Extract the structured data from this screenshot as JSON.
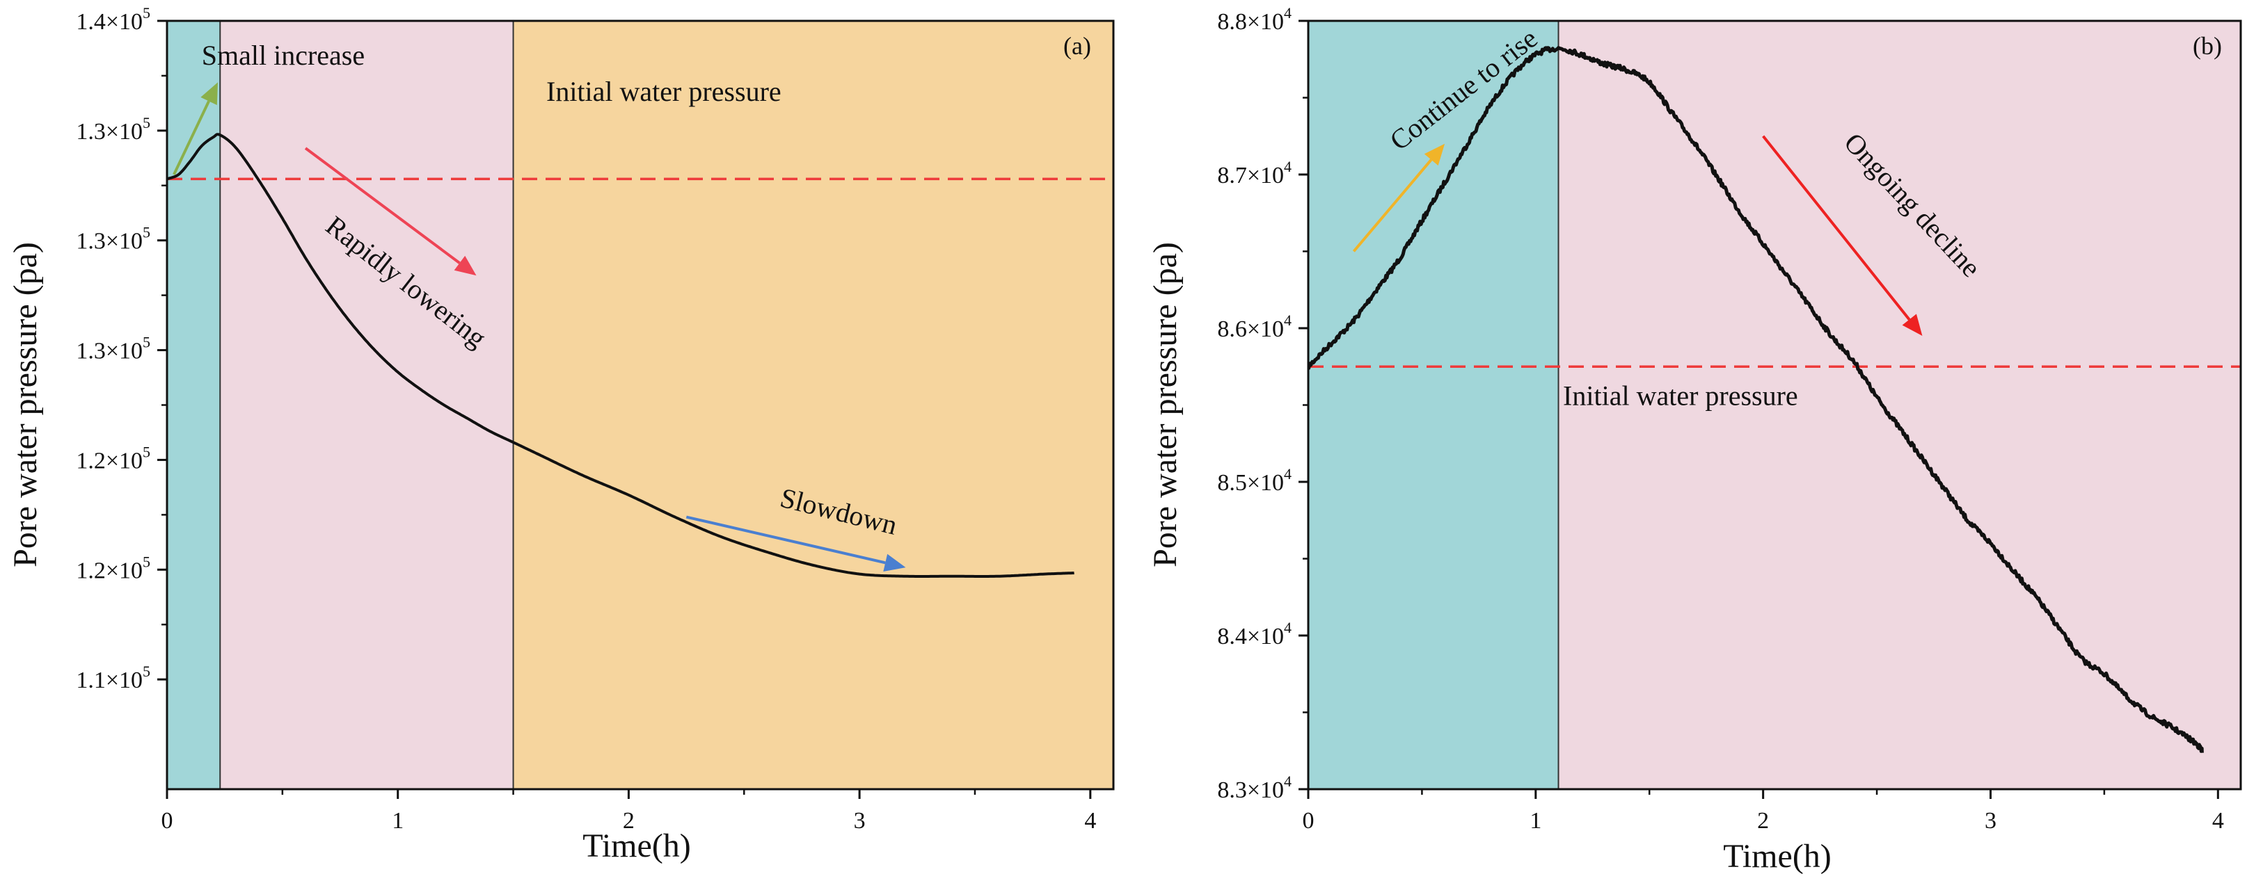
{
  "chart_data": [
    {
      "type": "line",
      "panel_label": "(a)",
      "xlabel": "Time(h)",
      "ylabel": "Pore water pressure (pa)",
      "xlim": [
        0,
        4.1
      ],
      "ylim": [
        105000,
        140000
      ],
      "x_ticks": [
        0,
        1,
        2,
        3,
        4
      ],
      "x_tick_labels": [
        "0",
        "1",
        "2",
        "3",
        "4"
      ],
      "y_ticks": [
        110000,
        115000,
        120000,
        125000,
        130000,
        135000,
        140000
      ],
      "y_tick_labels": [
        {
          "mantissa": "1.1×10",
          "exp": "5"
        },
        {
          "mantissa": "1.2×10",
          "exp": "5"
        },
        {
          "mantissa": "1.2×10",
          "exp": "5"
        },
        {
          "mantissa": "1.3×10",
          "exp": "5"
        },
        {
          "mantissa": "1.3×10",
          "exp": "5"
        },
        {
          "mantissa": "1.3×10",
          "exp": "5"
        },
        {
          "mantissa": "1.4×10",
          "exp": "5"
        }
      ],
      "regions": [
        {
          "x0": 0,
          "x1": 0.23,
          "color": "#a1d6d8"
        },
        {
          "x0": 0.23,
          "x1": 1.5,
          "color": "#efd8e0"
        },
        {
          "x0": 1.5,
          "x1": 4.1,
          "color": "#f6d59e"
        }
      ],
      "reference_line": {
        "y": 132800,
        "label": "Initial water pressure",
        "color": "#ee3b3b"
      },
      "series": [
        {
          "name": "Pore water pressure",
          "color": "#111111",
          "x": [
            0,
            0.05,
            0.1,
            0.15,
            0.2,
            0.23,
            0.3,
            0.4,
            0.5,
            0.6,
            0.7,
            0.8,
            0.9,
            1.0,
            1.1,
            1.2,
            1.3,
            1.4,
            1.5,
            1.6,
            1.8,
            2.0,
            2.2,
            2.4,
            2.6,
            2.8,
            3.0,
            3.2,
            3.4,
            3.6,
            3.8,
            3.93
          ],
          "y": [
            132800,
            133000,
            133600,
            134300,
            134700,
            134800,
            134200,
            132700,
            131000,
            129200,
            127600,
            126200,
            125000,
            124000,
            123200,
            122500,
            121900,
            121300,
            120800,
            120300,
            119300,
            118400,
            117400,
            116500,
            115800,
            115200,
            114800,
            114700,
            114700,
            114700,
            114800,
            114850
          ]
        }
      ],
      "annotations": [
        {
          "text": "Small increase",
          "x": 0.15,
          "y": 138000
        },
        {
          "text": "Rapidly lowering",
          "x": 0.68,
          "y": 130500
        },
        {
          "text": "Slowdown",
          "x": 2.65,
          "y": 117900
        }
      ],
      "arrows": [
        {
          "from": [
            0.03,
            133000
          ],
          "to": [
            0.22,
            137200
          ],
          "color": "#8bb04b"
        },
        {
          "from": [
            0.6,
            134200
          ],
          "to": [
            1.34,
            128400
          ],
          "color": "#ee4455"
        },
        {
          "from": [
            2.25,
            117400
          ],
          "to": [
            3.2,
            115100
          ],
          "color": "#4a7fd0"
        }
      ]
    },
    {
      "type": "line",
      "panel_label": "(b)",
      "xlabel": "Time(h)",
      "ylabel": "Pore water pressure (pa)",
      "xlim": [
        0,
        4.1
      ],
      "ylim": [
        83000,
        88000
      ],
      "x_ticks": [
        0,
        1,
        2,
        3,
        4
      ],
      "x_tick_labels": [
        "0",
        "1",
        "2",
        "3",
        "4"
      ],
      "y_ticks": [
        83000,
        84000,
        85000,
        86000,
        87000,
        88000
      ],
      "y_tick_labels": [
        {
          "mantissa": "8.3×10",
          "exp": "4"
        },
        {
          "mantissa": "8.4×10",
          "exp": "4"
        },
        {
          "mantissa": "8.5×10",
          "exp": "4"
        },
        {
          "mantissa": "8.6×10",
          "exp": "4"
        },
        {
          "mantissa": "8.7×10",
          "exp": "4"
        },
        {
          "mantissa": "8.8×10",
          "exp": "4"
        }
      ],
      "regions": [
        {
          "x0": 0,
          "x1": 1.1,
          "color": "#a1d6d8"
        },
        {
          "x0": 1.1,
          "x1": 4.1,
          "color": "#efd8e0"
        }
      ],
      "reference_line": {
        "y": 85750,
        "label": "Initial water pressure",
        "color": "#ee3b3b"
      },
      "series": [
        {
          "name": "Pore water pressure",
          "color": "#111111",
          "x": [
            0,
            0.1,
            0.2,
            0.3,
            0.4,
            0.5,
            0.6,
            0.7,
            0.8,
            0.9,
            1.0,
            1.1,
            1.2,
            1.3,
            1.4,
            1.5,
            1.6,
            1.7,
            1.8,
            1.9,
            2.0,
            2.1,
            2.2,
            2.3,
            2.4,
            2.5,
            2.6,
            2.7,
            2.8,
            2.9,
            3.0,
            3.1,
            3.2,
            3.3,
            3.4,
            3.5,
            3.6,
            3.7,
            3.8,
            3.9,
            3.93
          ],
          "y": [
            85750,
            85900,
            86050,
            86250,
            86450,
            86700,
            86950,
            87200,
            87450,
            87650,
            87780,
            87820,
            87780,
            87720,
            87680,
            87600,
            87400,
            87200,
            86980,
            86750,
            86550,
            86350,
            86150,
            85950,
            85780,
            85550,
            85350,
            85150,
            84950,
            84750,
            84600,
            84420,
            84250,
            84050,
            83850,
            83750,
            83600,
            83480,
            83400,
            83300,
            83250
          ]
        }
      ],
      "annotations": [
        {
          "text": "Continue to rise",
          "x": 0.4,
          "y": 87150
        },
        {
          "text": "Ongoing decline",
          "x": 2.35,
          "y": 87200
        },
        {
          "text": "Initial water pressure",
          "x": 1.12,
          "y": 85500
        }
      ],
      "arrows": [
        {
          "from": [
            0.2,
            86500
          ],
          "to": [
            0.6,
            87200
          ],
          "color": "#f0b429"
        },
        {
          "from": [
            2.0,
            87250
          ],
          "to": [
            2.7,
            85950
          ],
          "color": "#ee2222"
        }
      ]
    }
  ]
}
